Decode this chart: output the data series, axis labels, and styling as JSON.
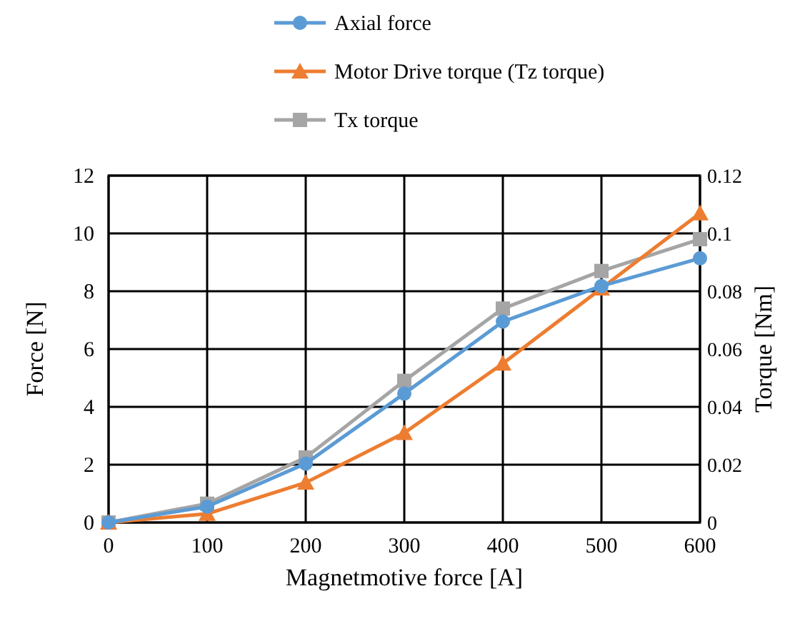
{
  "chart_data": {
    "type": "line",
    "xlabel": "Magnetmotive force [A]",
    "ylabel": "Force [N]",
    "y2label": "Torque [Nm]",
    "x": [
      0,
      100,
      200,
      300,
      400,
      500,
      600
    ],
    "xlim": [
      0,
      600
    ],
    "xticks": [
      0,
      100,
      200,
      300,
      400,
      500,
      600
    ],
    "ylim": [
      0,
      12
    ],
    "yticks": [
      0,
      2,
      4,
      6,
      8,
      10,
      12
    ],
    "y2lim": [
      0,
      0.12
    ],
    "y2ticks": [
      0,
      0.02,
      0.04,
      0.06,
      0.08,
      {
        "value": 0.1,
        "label": "0.1"
      },
      0.12
    ],
    "grid": true,
    "legend": "top",
    "series": [
      {
        "name": "Axial force",
        "color": "#5b9bd5",
        "marker": "circle",
        "values": [
          0,
          0.55,
          2.04,
          4.46,
          6.95,
          8.18,
          9.14
        ]
      },
      {
        "name": "Motor Drive torque (Tz torque)",
        "color": "#ed7d31",
        "marker": "triangle",
        "axis": "y2",
        "values": [
          0,
          0.003,
          0.0138,
          0.031,
          0.055,
          0.081,
          0.107
        ]
      },
      {
        "name": "Tx torque",
        "color": "#a5a5a5",
        "marker": "square",
        "axis": "y2",
        "values": [
          0,
          0.0065,
          0.0225,
          0.049,
          0.074,
          0.087,
          0.098
        ]
      }
    ]
  }
}
